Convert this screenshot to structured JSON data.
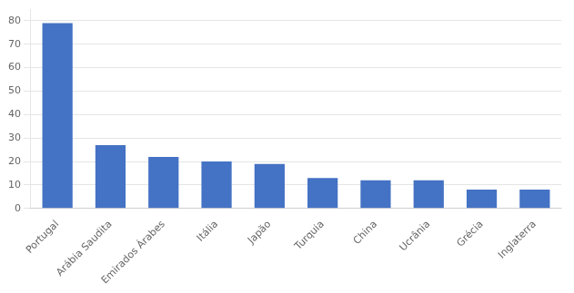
{
  "chart_data": {
    "type": "bar",
    "categories": [
      "Portugal",
      "Arábia Saudita",
      "Emirados Árabes",
      "Itália",
      "Japão",
      "Turquia",
      "China",
      "Ucrânia",
      "Grécia",
      "Inglaterra"
    ],
    "values": [
      79,
      27,
      22,
      20,
      19,
      13,
      12,
      12,
      8,
      8
    ],
    "color": "#4472C4",
    "ylim": [
      0,
      85
    ],
    "yticks": [
      0,
      10,
      20,
      30,
      40,
      50,
      60,
      70,
      80
    ],
    "grid": true
  }
}
